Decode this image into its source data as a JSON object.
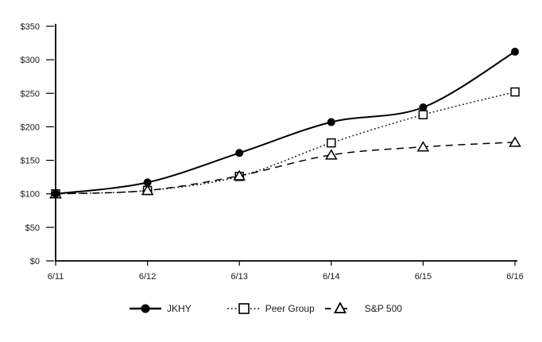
{
  "chart_data": {
    "type": "line",
    "title": "",
    "xlabel": "",
    "ylabel": "",
    "x": [
      "6/11",
      "6/12",
      "6/13",
      "6/14",
      "6/15",
      "6/16"
    ],
    "series": [
      {
        "name": "JKHY",
        "values": [
          100,
          117,
          161,
          207,
          229,
          312
        ],
        "line": "solid",
        "marker": "filled-circle"
      },
      {
        "name": "Peer Group",
        "values": [
          100,
          105,
          126,
          176,
          218,
          252
        ],
        "line": "dotted",
        "marker": "open-square"
      },
      {
        "name": "S&P 500",
        "values": [
          100,
          105,
          127,
          158,
          170,
          177
        ],
        "line": "dashed",
        "marker": "open-triangle"
      }
    ],
    "ylim": [
      0,
      350
    ],
    "y_tick_step": 50,
    "y_ticks": [
      "$350",
      "$300",
      "$250",
      "$200",
      "$150",
      "$100",
      "$50",
      "$0"
    ],
    "grid": false,
    "legend_position": "bottom",
    "line_color": "#000000",
    "text_color": "#1a1a1a",
    "background": "#ffffff"
  }
}
